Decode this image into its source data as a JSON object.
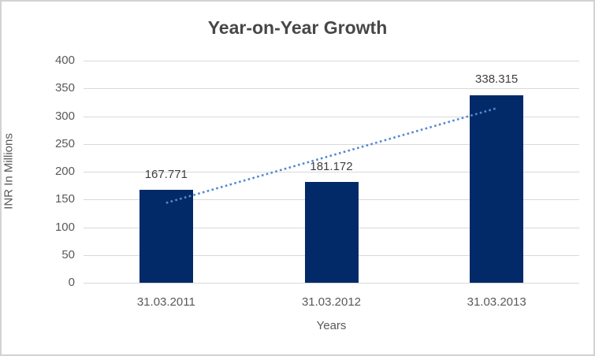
{
  "chart_data": {
    "type": "bar",
    "title": "Year-on-Year Growth",
    "categories": [
      "31.03.2011",
      "31.03.2012",
      "31.03.2013"
    ],
    "values": [
      167.771,
      181.172,
      338.315
    ],
    "data_labels": [
      "167.771",
      "181.172",
      "338.315"
    ],
    "xlabel": "Years",
    "ylabel": "INR In Millions",
    "ylim": [
      0,
      400
    ],
    "ytick_step": 50,
    "grid": true,
    "legend": "none",
    "bar_color": "#022a69",
    "gridline_color": "#d9d9d9",
    "trendline": {
      "type": "linear",
      "style": "dotted",
      "color": "#5289d4",
      "endpoint_values": [
        143.814,
        314.358
      ]
    }
  },
  "colors": {
    "title_text": "#474747",
    "axis_text": "#595959",
    "data_label_text": "#3f3f3f",
    "border": "#d2d2d2",
    "background": "#ffffff"
  }
}
